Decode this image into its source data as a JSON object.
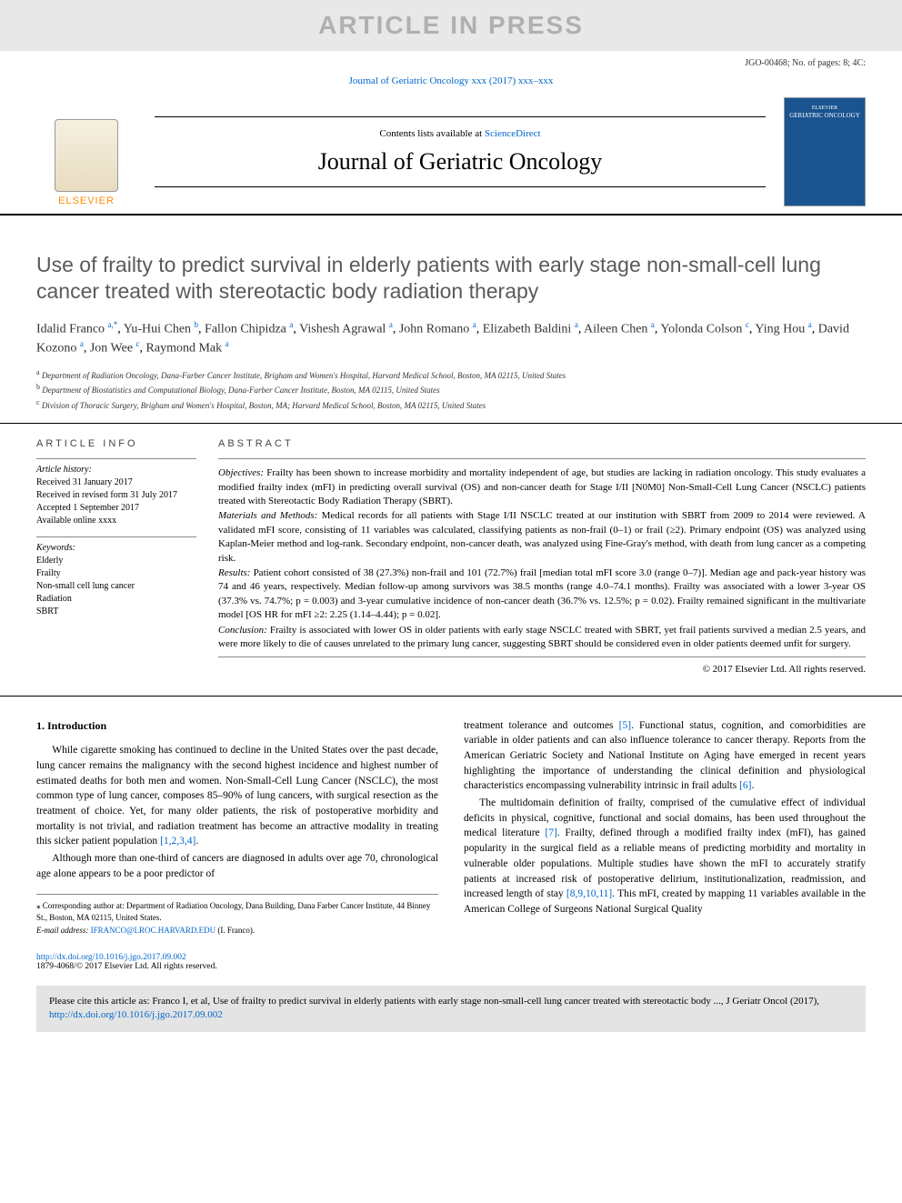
{
  "watermark": "ARTICLE IN PRESS",
  "header_meta": "JGO-00468; No. of pages: 8; 4C:",
  "journal_ref_pre": "Journal of Geriatric Oncology xxx (2017) xxx–xxx",
  "publisher_logo_name": "ELSEVIER",
  "contents_line_pre": "Contents lists available at ",
  "contents_line_link": "ScienceDirect",
  "journal_name": "Journal of Geriatric Oncology",
  "cover_pub": "ELSEVIER",
  "cover_title": "GERIATRIC ONCOLOGY",
  "title": "Use of frailty to predict survival in elderly patients with early stage non-small-cell lung cancer treated with stereototactic body radiation therapy",
  "title_actual": "Use of frailty to predict survival in elderly patients with early stage non-small-cell lung cancer treated with stereotactic body radiation therapy",
  "authors": [
    {
      "name": "Idalid Franco",
      "sup": "a,*"
    },
    {
      "name": "Yu-Hui Chen",
      "sup": "b"
    },
    {
      "name": "Fallon Chipidza",
      "sup": "a"
    },
    {
      "name": "Vishesh Agrawal",
      "sup": "a"
    },
    {
      "name": "John Romano",
      "sup": "a"
    },
    {
      "name": "Elizabeth Baldini",
      "sup": "a"
    },
    {
      "name": "Aileen Chen",
      "sup": "a"
    },
    {
      "name": "Yolonda Colson",
      "sup": "c"
    },
    {
      "name": "Ying Hou",
      "sup": "a"
    },
    {
      "name": "David Kozono",
      "sup": "a"
    },
    {
      "name": "Jon Wee",
      "sup": "c"
    },
    {
      "name": "Raymond Mak",
      "sup": "a"
    }
  ],
  "affiliations": [
    {
      "sup": "a",
      "text": "Department of Radiation Oncology, Dana-Farber Cancer Institute, Brigham and Women's Hospital, Harvard Medical School, Boston, MA 02115, United States"
    },
    {
      "sup": "b",
      "text": "Department of Biostatistics and Computational Biology, Dana-Farber Cancer Institute, Boston, MA 02115, United States"
    },
    {
      "sup": "c",
      "text": "Division of Thoracic Surgery, Brigham and Women's Hospital, Boston, MA; Harvard Medical School, Boston, MA 02115, United States"
    }
  ],
  "article_info_label": "article info",
  "abstract_label": "abstract",
  "history_head": "Article history:",
  "history": [
    "Received 31 January 2017",
    "Received in revised form 31 July 2017",
    "Accepted 1 September 2017",
    "Available online xxxx"
  ],
  "keywords_head": "Keywords:",
  "keywords": [
    "Elderly",
    "Frailty",
    "Non-small cell lung cancer",
    "Radiation",
    "SBRT"
  ],
  "abstract": {
    "objectives": "Frailty has been shown to increase morbidity and mortality independent of age, but studies are lacking in radiation oncology. This study evaluates a modified frailty index (mFI) in predicting overall survival (OS) and non-cancer death for Stage I/II [N0M0] Non-Small-Cell Lung Cancer (NSCLC) patients treated with Stereotactic Body Radiation Therapy (SBRT).",
    "materials": "Medical records for all patients with Stage I/II NSCLC treated at our institution with SBRT from 2009 to 2014 were reviewed. A validated mFI score, consisting of 11 variables was calculated, classifying patients as non-frail (0–1) or frail (≥2). Primary endpoint (OS) was analyzed using Kaplan-Meier method and log-rank. Secondary endpoint, non-cancer death, was analyzed using Fine-Gray's method, with death from lung cancer as a competing risk.",
    "results": "Patient cohort consisted of 38 (27.3%) non-frail and 101 (72.7%) frail [median total mFI score 3.0 (range 0–7)]. Median age and pack-year history was 74 and 46 years, respectively. Median follow-up among survivors was 38.5 months (range 4.0–74.1 months). Frailty was associated with a lower 3-year OS (37.3% vs. 74.7%; p = 0.003) and 3-year cumulative incidence of non-cancer death (36.7% vs. 12.5%; p = 0.02). Frailty remained significant in the multivariate model [OS HR for mFI ≥2: 2.25 (1.14–4.44); p = 0.02].",
    "conclusion": "Frailty is associated with lower OS in older patients with early stage NSCLC treated with SBRT, yet frail patients survived a median 2.5 years, and were more likely to die of causes unrelated to the primary lung cancer, suggesting SBRT should be considered even in older patients deemed unfit for surgery.",
    "copyright": "© 2017 Elsevier Ltd. All rights reserved."
  },
  "intro_head": "1. Introduction",
  "intro_p1": "While cigarette smoking has continued to decline in the United States over the past decade, lung cancer remains the malignancy with the second highest incidence and highest number of estimated deaths for both men and women. Non-Small-Cell Lung Cancer (NSCLC), the most common type of lung cancer, composes 85–90% of lung cancers, with surgical resection as the treatment of choice. Yet, for many older patients, the risk of postoperative morbidity and mortality is not trivial, and radiation treatment has become an attractive modality in treating this sicker patient population ",
  "intro_p1_ref": "[1,2,3,4]",
  "intro_p2": "Although more than one-third of cancers are diagnosed in adults over age 70, chronological age alone appears to be a poor predictor of",
  "intro_p3_pre": "treatment tolerance and outcomes ",
  "intro_p3_ref1": "[5]",
  "intro_p3_mid": ". Functional status, cognition, and comorbidities are variable in older patients and can also influence tolerance to cancer therapy. Reports from the American Geriatric Society and National Institute on Aging have emerged in recent years highlighting the importance of understanding the clinical definition and physiological characteristics encompassing vulnerability intrinsic in frail adults ",
  "intro_p3_ref2": "[6]",
  "intro_p4_pre": "The multidomain definition of frailty, comprised of the cumulative effect of individual deficits in physical, cognitive, functional and social domains, has been used throughout the medical literature ",
  "intro_p4_ref1": "[7]",
  "intro_p4_mid": ". Frailty, defined through a modified frailty index (mFI), has gained popularity in the surgical field as a reliable means of predicting morbidity and mortality in vulnerable older populations. Multiple studies have shown the mFI to accurately stratify patients at increased risk of postoperative delirium, institutionalization, readmission, and increased length of stay ",
  "intro_p4_ref2": "[8,9,10,11]",
  "intro_p4_end": ". This mFI, created by mapping 11 variables available in the American College of Surgeons National Surgical Quality",
  "corr_note": "⁎ Corresponding author at: Department of Radiation Oncology, Dana Building, Dana Farber Cancer Institute, 44 Binney St., Boston, MA 02115, United States.",
  "email_label": "E-mail address: ",
  "email": "IFRANCO@LROC.HARVARD.EDU",
  "email_post": " (I. Franco).",
  "doi_link": "http://dx.doi.org/10.1016/j.jgo.2017.09.002",
  "doi_copyright": "1879-4068/© 2017 Elsevier Ltd. All rights reserved.",
  "citation_pre": "Please cite this article as: Franco I, et al, Use of frailty to predict survival in elderly patients with early stage non-small-cell lung cancer treated with stereotactic body ..., J Geriatr Oncol (2017), ",
  "citation_link": "http://dx.doi.org/10.1016/j.jgo.2017.09.002",
  "colors": {
    "link": "#0066cc",
    "watermark_bg": "#e8e8e8",
    "watermark_text": "#b0b0b0",
    "citation_bg": "#e4e4e4",
    "cover_bg": "#1a5490",
    "title_gray": "#5a5a5a",
    "elsevier_orange": "#ff8c00"
  }
}
